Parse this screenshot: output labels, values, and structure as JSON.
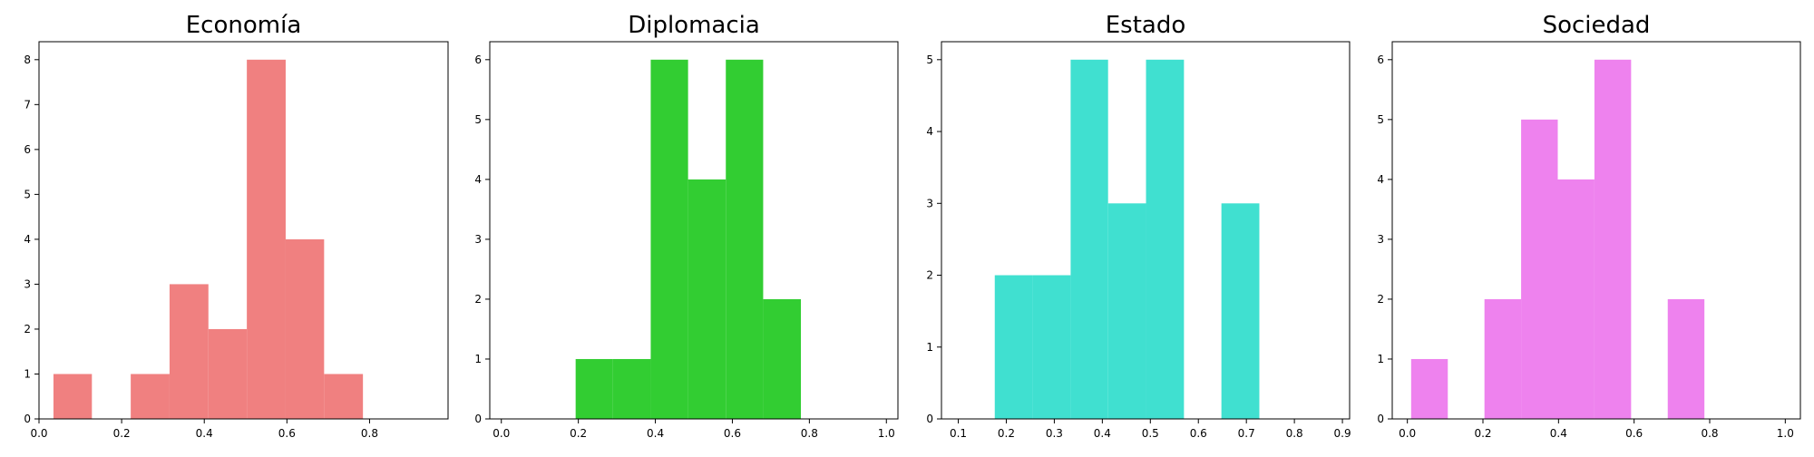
{
  "chart_data": [
    {
      "type": "histogram",
      "title": "Economía",
      "color": "#F08080",
      "xlim": [
        0.0,
        0.99
      ],
      "ylim": [
        0,
        8.4
      ],
      "xticks": [
        0.0,
        0.2,
        0.4,
        0.6,
        0.8
      ],
      "xtick_labels": [
        "0.0",
        "0.2",
        "0.4",
        "0.6",
        "0.8"
      ],
      "yticks": [
        0,
        1,
        2,
        3,
        4,
        5,
        6,
        7,
        8
      ],
      "ytick_labels": [
        "0",
        "1",
        "2",
        "3",
        "4",
        "5",
        "6",
        "7",
        "8"
      ],
      "bins": [
        0.035,
        0.128,
        0.222,
        0.316,
        0.41,
        0.503,
        0.597,
        0.69,
        0.784
      ],
      "counts": [
        1,
        0,
        1,
        3,
        2,
        8,
        4,
        1
      ]
    },
    {
      "type": "histogram",
      "title": "Diplomacia",
      "color": "#32CD32",
      "xlim": [
        -0.03,
        1.03
      ],
      "ylim": [
        0,
        6.3
      ],
      "xticks": [
        0.0,
        0.2,
        0.4,
        0.6,
        0.8,
        1.0
      ],
      "xtick_labels": [
        "0.0",
        "0.2",
        "0.4",
        "0.6",
        "0.8",
        "1.0"
      ],
      "yticks": [
        0,
        1,
        2,
        3,
        4,
        5,
        6
      ],
      "ytick_labels": [
        "0",
        "1",
        "2",
        "3",
        "4",
        "5",
        "6"
      ],
      "bins": [
        0.193,
        0.29,
        0.388,
        0.485,
        0.583,
        0.68,
        0.778
      ],
      "counts": [
        1,
        1,
        6,
        4,
        6,
        2
      ]
    },
    {
      "type": "histogram",
      "title": "Estado",
      "color": "#40E0D0",
      "xlim": [
        0.065,
        0.915
      ],
      "ylim": [
        0,
        5.25
      ],
      "xticks": [
        0.1,
        0.2,
        0.3,
        0.4,
        0.5,
        0.6,
        0.7,
        0.8,
        0.9
      ],
      "xtick_labels": [
        "0.1",
        "0.2",
        "0.3",
        "0.4",
        "0.5",
        "0.6",
        "0.7",
        "0.8",
        "0.9"
      ],
      "yticks": [
        0,
        1,
        2,
        3,
        4,
        5
      ],
      "ytick_labels": [
        "0",
        "1",
        "2",
        "3",
        "4",
        "5"
      ],
      "bins": [
        0.176,
        0.255,
        0.334,
        0.412,
        0.491,
        0.57,
        0.648,
        0.727
      ],
      "counts": [
        2,
        2,
        5,
        3,
        5,
        0,
        3
      ]
    },
    {
      "type": "histogram",
      "title": "Sociedad",
      "color": "#EE82EE",
      "xlim": [
        -0.04,
        1.04
      ],
      "ylim": [
        0,
        6.3
      ],
      "xticks": [
        0.0,
        0.2,
        0.4,
        0.6,
        0.8,
        1.0
      ],
      "xtick_labels": [
        "0.0",
        "0.2",
        "0.4",
        "0.6",
        "0.8",
        "1.0"
      ],
      "yticks": [
        0,
        1,
        2,
        3,
        4,
        5,
        6
      ],
      "ytick_labels": [
        "0",
        "1",
        "2",
        "3",
        "4",
        "5",
        "6"
      ],
      "bins": [
        0.01,
        0.107,
        0.204,
        0.301,
        0.398,
        0.495,
        0.592,
        0.689,
        0.786
      ],
      "counts": [
        1,
        0,
        2,
        5,
        4,
        6,
        0,
        2
      ]
    }
  ]
}
